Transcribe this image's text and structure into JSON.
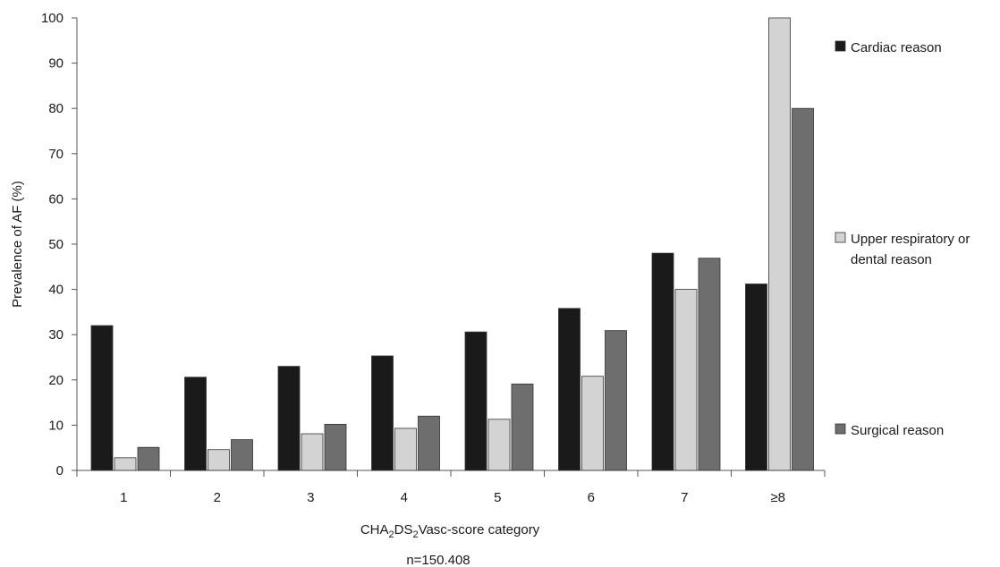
{
  "chart_data": {
    "type": "bar",
    "categories": [
      "1",
      "2",
      "3",
      "4",
      "5",
      "6",
      "7",
      "≥8"
    ],
    "series": [
      {
        "name": "Cardiac reason",
        "color": "#1a1a1a",
        "values": [
          32,
          20.6,
          23,
          25.3,
          30.6,
          35.8,
          48,
          41.2
        ]
      },
      {
        "name": "Upper respiratory or dental reason",
        "color": "#d3d3d3",
        "values": [
          2.8,
          4.6,
          8.1,
          9.3,
          11.3,
          20.8,
          40,
          100
        ]
      },
      {
        "name": "Surgical reason",
        "color": "#6e6e6e",
        "values": [
          5.1,
          6.8,
          10.2,
          12,
          19.1,
          30.9,
          46.9,
          80
        ]
      }
    ],
    "yticks": [
      "0",
      "10",
      "20",
      "30",
      "40",
      "50",
      "60",
      "70",
      "80",
      "90",
      "100"
    ],
    "ylim": [
      0,
      100
    ],
    "ylabel": "Prevalence of AF (%)",
    "xlabel": {
      "pre": "CHA",
      "sub1": "2",
      "mid": "DS",
      "sub2": "2",
      "post": "Vasc-score category"
    },
    "note": "n=150.408",
    "legend_position": "right",
    "grid": false
  }
}
